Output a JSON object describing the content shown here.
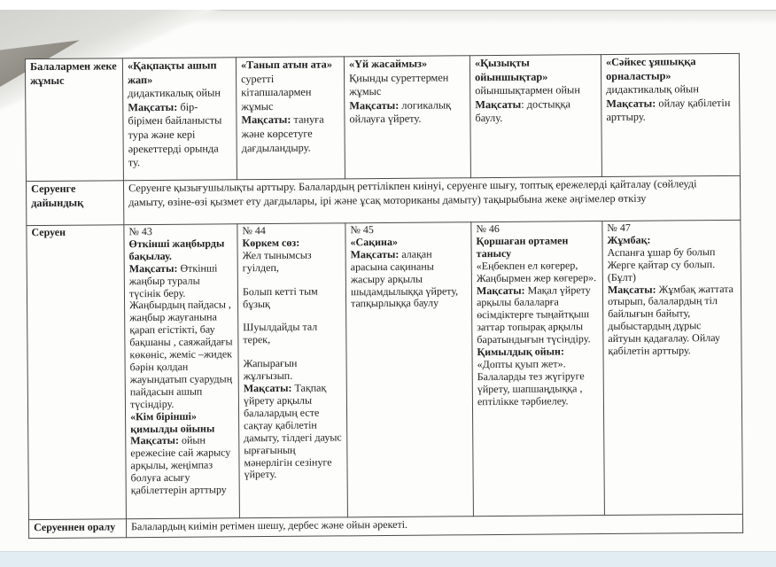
{
  "colors": {
    "paper": "#fcfcfa",
    "scanner_strip": "#e2ecf3",
    "table_border": "#4a4a48",
    "fold_shadow": "#7e7a71",
    "text": "#1f1f21"
  },
  "table": {
    "rows": [
      {
        "cells": [
          [
            [
              [
                "Балалармен жеке жұмыс",
                true
              ]
            ]
          ],
          [
            [
              [
                "«Қақпақты ашып жап»",
                true
              ]
            ],
            [
              [
                "дидактикалық ойын",
                false
              ]
            ],
            [
              [
                "Мақсаты:",
                true
              ],
              [
                " бір-бірімен байланысты тура және кері әрекеттерді орында ту.",
                false
              ]
            ]
          ],
          [
            [
              [
                "«Танып атын ата»",
                true
              ]
            ],
            [
              [
                "суретті кітапшалармен жұмыс",
                false
              ]
            ],
            [
              [
                "Мақсаты:",
                true
              ],
              [
                " тануға және көрсетуге дағдыландыру.",
                false
              ]
            ]
          ],
          [
            [
              [
                "«Үй  жасаймыз»",
                true
              ]
            ],
            [
              [
                "Қиынды суреттермен жұмыс",
                false
              ]
            ],
            [
              [
                "Мақсаты:",
                true
              ],
              [
                " логикалық ойлауға үйрету.",
                false
              ]
            ]
          ],
          [
            [
              [
                "«Қызықты ойыншықтар»",
                true
              ]
            ],
            [
              [
                "ойыншықтармен ойын",
                false
              ]
            ],
            [
              [
                "Мақсаты",
                true
              ],
              [
                ":  достыққа баулу.",
                false
              ]
            ]
          ],
          [
            [
              [
                "«Сәйкес ұяшыққа орналастыр»",
                true
              ]
            ],
            [
              [
                "дидактикалық ойын",
                false
              ]
            ],
            [
              [
                "Мақсаты:",
                true
              ],
              [
                " ойлау қабілетін арттыру.",
                false
              ]
            ]
          ]
        ]
      },
      {
        "cells": [
          [
            [
              [
                "Серуенге дайындық",
                true
              ]
            ]
          ],
          [
            [
              [
                "Серуенге қызығушылықты арттыру.  Балалардың реттілікпен киінуі,  серуенге шығу,  топтық ережелерді қайталау  (сөйлеуді дамыту, өзіне-өзі қызмет ету дағдылары, ірі және ұсақ моториканы дамыту) тақырыбына   жеке әңгімелер өткізу",
                false
              ]
            ]
          ]
        ]
      },
      {
        "cells": [
          [
            [
              [
                "Серуен",
                true
              ]
            ]
          ],
          [
            [
              [
                "№ 43",
                false
              ]
            ],
            [
              [
                "Өткінші жаңбырды бақылау.",
                true
              ]
            ],
            [
              [
                "Мақсаты:",
                true
              ],
              [
                "  Өткінші жаңбыр туралы түсінік беру. Жаңбырдың пайдасы , жаңбыр жауғанына қарап егістікті, бау бақшаны , саяжайдағы көкөніс, жеміс –жидек  бәрін қолдан жауындатып суарудың пайдасын ашып түсіндіру.",
                false
              ]
            ],
            [
              [
                "«Кім бірінші» қимылды ойыны",
                true
              ]
            ],
            [
              [
                "Мақсаты:",
                true
              ],
              [
                " ойын ережесіне сай жарысу арқылы, жеңімпаз болуға асығу қабілеттерін арттыру",
                false
              ]
            ]
          ],
          [
            [
              [
                "№ 44",
                false
              ]
            ],
            [
              [
                "Көркем сөз:",
                true
              ]
            ],
            [
              [
                "Жел тынымсыз гуілдеп,",
                false
              ]
            ],
            [
              [
                "",
                false
              ]
            ],
            [
              [
                "Болып кетті тым бұзық",
                false
              ]
            ],
            [
              [
                "",
                false
              ]
            ],
            [
              [
                "Шуылдайды тал терек,",
                false
              ]
            ],
            [
              [
                "",
                false
              ]
            ],
            [
              [
                "Жапырағын жұлғызып.",
                false
              ]
            ],
            [
              [
                "Мақсаты:",
                true
              ],
              [
                "  Тақпақ үйрету арқылы балалардың  есте сақтау қабілетін дамыту, тілдегі дауыс ырғағының мәнерлігін сезінуге үйрету.",
                false
              ]
            ]
          ],
          [
            [
              [
                "№ 45",
                false
              ]
            ],
            [
              [
                "«Сақина»",
                true
              ]
            ],
            [
              [
                "Мақсаты:",
                true
              ],
              [
                " алақан арасына сақинаны жасыру арқылы шыдамдылыққа үйрету, тапқырлыққа баулу",
                false
              ]
            ]
          ],
          [
            [
              [
                "№ 46",
                false
              ]
            ],
            [
              [
                "Қоршаған ортамен танысу",
                true
              ]
            ],
            [
              [
                "«Еңбекпен  ел көгерер, Жаңбырмен жер көгерер».",
                false
              ]
            ],
            [
              [
                "Мақсаты:",
                true
              ],
              [
                "  Мақал үйрету  арқылы балаларға  өсімдіктерге тыңайтқыш заттар топырақ арқылы баратындығын түсіндіру.",
                false
              ]
            ],
            [
              [
                "Қимылдық ойын:",
                true
              ]
            ],
            [
              [
                "«Допты  қуып жет».",
                false
              ]
            ],
            [
              [
                "Балаларды тез жүгіруге үйрету, шапшаңдыққа , ептілікке  тәрбиелеу.",
                false
              ]
            ]
          ],
          [
            [
              [
                "№ 47",
                false
              ]
            ],
            [
              [
                "Жұмбақ:",
                true
              ]
            ],
            [
              [
                "Аспанға ұшар бу болып",
                false
              ]
            ],
            [
              [
                "Жерге қайтар су болып.",
                false
              ]
            ],
            [
              [
                "(Бұлт)",
                false
              ]
            ],
            [
              [
                "Мақсаты:",
                true
              ],
              [
                " Жұмбақ жаттата   отырып, балалардың  тіл байлығын байыту, дыбыстардың дұрыс айтуын қадағалау. Ойлау қабілетін арттыру.",
                false
              ]
            ]
          ]
        ]
      },
      {
        "cells": [
          [
            [
              [
                "Серуеннен оралу",
                true
              ]
            ]
          ],
          [
            [
              [
                "Балалардың киімін ретімен шешу, дербес және ойын әрекеті.",
                false
              ]
            ]
          ]
        ]
      }
    ]
  }
}
